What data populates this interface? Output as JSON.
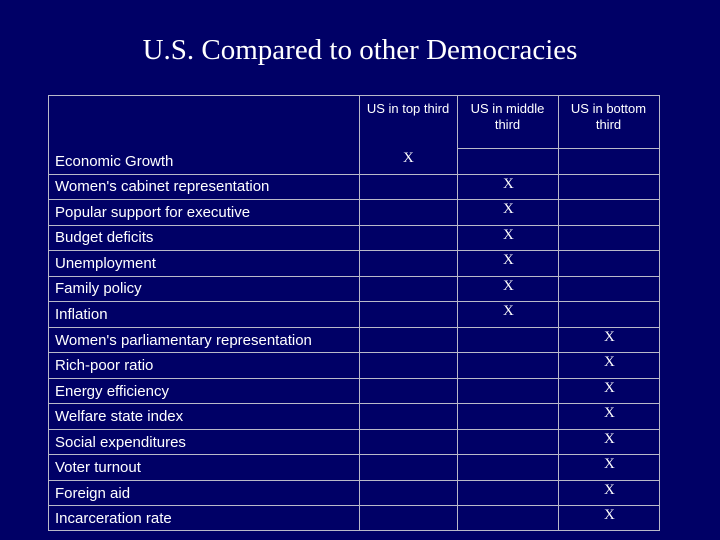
{
  "slide": {
    "title": "U.S. Compared to other Democracies"
  },
  "table": {
    "columns": [
      "US in top third",
      "US in middle third",
      "US in bottom third"
    ],
    "mark": "X",
    "rows": [
      {
        "label": "Economic Growth",
        "placement": "top"
      },
      {
        "label": "Women's cabinet representation",
        "placement": "middle"
      },
      {
        "label": "Popular support for executive",
        "placement": "middle"
      },
      {
        "label": "Budget deficits",
        "placement": "middle"
      },
      {
        "label": "Unemployment",
        "placement": "middle"
      },
      {
        "label": "Family policy",
        "placement": "middle"
      },
      {
        "label": "Inflation",
        "placement": "middle"
      },
      {
        "label": "Women's parliamentary representation",
        "placement": "bottom"
      },
      {
        "label": "Rich-poor ratio",
        "placement": "bottom"
      },
      {
        "label": "Energy efficiency",
        "placement": "bottom"
      },
      {
        "label": "Welfare state index",
        "placement": "bottom"
      },
      {
        "label": "Social expenditures",
        "placement": "bottom"
      },
      {
        "label": "Voter turnout",
        "placement": "bottom"
      },
      {
        "label": "Foreign aid",
        "placement": "bottom"
      },
      {
        "label": "Incarceration rate",
        "placement": "bottom"
      }
    ]
  }
}
